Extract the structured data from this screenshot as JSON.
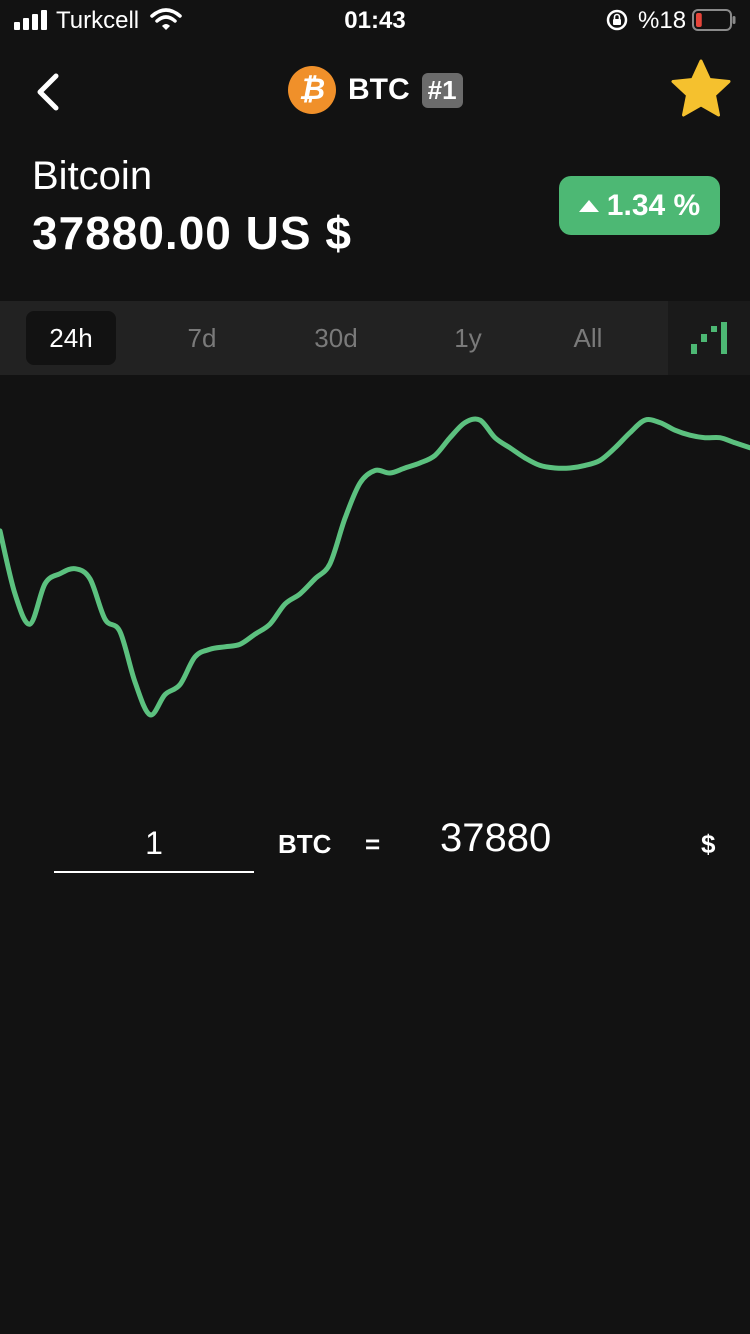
{
  "status_bar": {
    "carrier": "Turkcell",
    "time": "01:43",
    "battery_pct": "%18",
    "battery_level": 0.18,
    "icons": [
      "signal-icon",
      "wifi-icon",
      "rotation-lock-icon",
      "battery-icon"
    ]
  },
  "nav": {
    "back_icon": "chevron-left-icon",
    "coin_logo_glyph": "₿",
    "symbol": "BTC",
    "rank": "#1",
    "favorite_icon": "star-icon"
  },
  "coin": {
    "name": "Bitcoin",
    "price": "37880.00 US $",
    "change": "1.34 %",
    "change_direction": "up"
  },
  "colors": {
    "background": "#121212",
    "positive": "#4db874",
    "bitcoin_orange": "#f0902a",
    "star": "#f5c12e",
    "chart_line": "#5cc17f"
  },
  "time_ranges": {
    "items": [
      "24h",
      "7d",
      "30d",
      "1y",
      "All"
    ],
    "selected": "24h",
    "chart_type_icon": "bar-chart-icon"
  },
  "chart_data": {
    "type": "line",
    "title": "",
    "xlabel": "",
    "ylabel": "",
    "grid": false,
    "x": [
      0,
      1,
      2,
      3,
      4,
      5,
      6,
      7,
      8,
      9,
      10,
      11,
      12,
      13,
      14,
      15,
      16,
      17,
      18,
      19,
      20,
      21,
      22,
      23,
      24,
      25,
      26,
      27,
      28,
      29,
      30,
      31,
      32,
      33,
      34,
      35,
      36,
      37,
      38,
      39,
      40,
      41,
      42,
      43,
      44,
      45,
      46,
      47,
      48,
      49,
      50
    ],
    "series": [
      {
        "values": [
          0.55,
          0.3,
          0.18,
          0.34,
          0.38,
          0.4,
          0.36,
          0.2,
          0.15,
          -0.05,
          -0.18,
          -0.1,
          -0.06,
          0.05,
          0.08,
          0.09,
          0.1,
          0.14,
          0.18,
          0.26,
          0.3,
          0.36,
          0.42,
          0.6,
          0.74,
          0.79,
          0.78,
          0.8,
          0.82,
          0.85,
          0.92,
          0.98,
          0.99,
          0.92,
          0.88,
          0.84,
          0.81,
          0.8,
          0.8,
          0.81,
          0.83,
          0.88,
          0.94,
          0.99,
          0.98,
          0.95,
          0.93,
          0.92,
          0.92,
          0.9,
          0.88
        ]
      }
    ],
    "ylim": [
      -0.3,
      1.05
    ]
  },
  "converter": {
    "amount": "1",
    "from_symbol": "BTC",
    "equals": "=",
    "result": "37880",
    "to_symbol": "$"
  }
}
